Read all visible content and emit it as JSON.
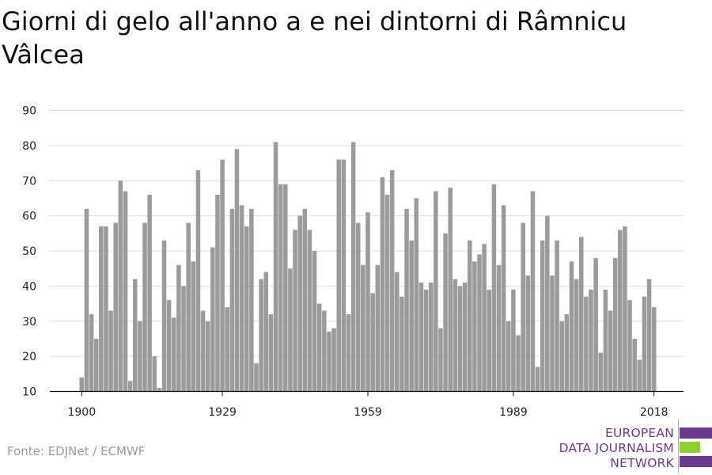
{
  "title": "Giorni di gelo all'anno a e nei dintorni di Râmnicu Vâlcea",
  "source": "Fonte: EDJNet / ECMWF",
  "logo": {
    "line1": "EUROPEAN",
    "line2": "DATA JOURNALISM",
    "line3": "NETWORK",
    "purple": "#6b3a90",
    "green": "#8fd12f"
  },
  "colors": {
    "bar": "#9b9b9b",
    "grid": "#dddddd",
    "axis": "#111111"
  },
  "chart_data": {
    "type": "bar",
    "title": "Giorni di gelo all'anno a e nei dintorni di Râmnicu Vâlcea",
    "xlabel": "",
    "ylabel": "",
    "ylim": [
      10,
      90
    ],
    "yticks": [
      10,
      20,
      30,
      40,
      50,
      60,
      70,
      80,
      90
    ],
    "xticks": [
      1900,
      1929,
      1959,
      1989,
      2018
    ],
    "grid": true,
    "x_start": 1900,
    "x_end": 2020,
    "values": [
      14,
      62,
      32,
      25,
      57,
      57,
      33,
      58,
      70,
      67,
      13,
      42,
      30,
      58,
      66,
      20,
      11,
      53,
      36,
      31,
      46,
      40,
      58,
      47,
      73,
      33,
      30,
      51,
      66,
      76,
      34,
      62,
      79,
      63,
      57,
      62,
      18,
      42,
      44,
      32,
      81,
      69,
      69,
      45,
      56,
      60,
      62,
      56,
      50,
      35,
      33,
      27,
      28,
      76,
      76,
      32,
      81,
      58,
      46,
      61,
      38,
      46,
      71,
      66,
      73,
      44,
      37,
      62,
      53,
      65,
      41,
      39,
      41,
      67,
      28,
      55,
      68,
      42,
      40,
      41,
      53,
      47,
      49,
      52,
      39,
      69,
      46,
      63,
      30,
      39,
      26,
      58,
      43,
      67,
      17,
      53,
      60,
      43,
      53,
      30,
      32,
      47,
      42,
      54,
      37,
      39,
      48,
      21,
      39,
      33,
      48,
      56,
      57,
      36,
      25,
      19,
      37,
      42,
      34
    ]
  }
}
